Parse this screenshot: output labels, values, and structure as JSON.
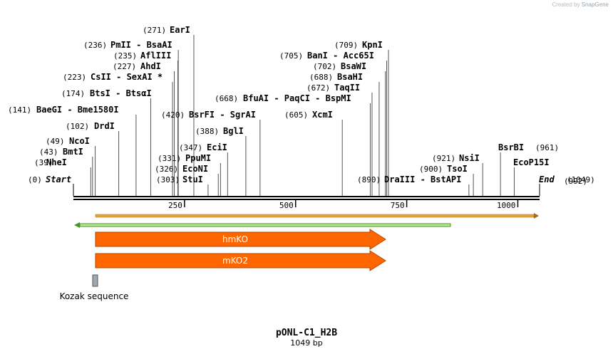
{
  "credit": {
    "prefix": "Created by",
    "brand": "SnapGene"
  },
  "title": "pONL-C1_H2B",
  "length_label": "1049 bp",
  "scale": {
    "min": 0,
    "max": 1049,
    "ticks": [
      250,
      500,
      750,
      1000
    ]
  },
  "colors": {
    "feature_fill": "#ff6600",
    "top_arrow": "#e8a33a",
    "bottom_arrow": "#3f9a1e",
    "backbone": "#000000"
  },
  "features": [
    {
      "name": "hmKO",
      "start": 49,
      "end": 709
    },
    {
      "name": "mKO2",
      "start": 49,
      "end": 709
    },
    {
      "name": "Kozak sequence",
      "start": 43,
      "end": 49
    }
  ],
  "ends": {
    "start_pos": "(0)",
    "start_label": "Start",
    "end_pos": "(1049)",
    "end_label": "End"
  },
  "sites": [
    {
      "pos": "(39)",
      "name": "NheI",
      "bp": 39
    },
    {
      "pos": "(43)",
      "name": "BmtI",
      "bp": 43
    },
    {
      "pos": "(49)",
      "name": "NcoI",
      "bp": 49
    },
    {
      "pos": "(102)",
      "name": "DrdI",
      "bp": 102
    },
    {
      "pos": "(141)",
      "name": "BaeGI  - Bme1580I",
      "bp": 141
    },
    {
      "pos": "(174)",
      "name": "BtsI  - BtsαI",
      "bp": 174
    },
    {
      "pos": "(223)",
      "name": "CsII  - SexAI *",
      "bp": 223
    },
    {
      "pos": "(227)",
      "name": "AhdI",
      "bp": 227
    },
    {
      "pos": "(235)",
      "name": "AflIII",
      "bp": 235
    },
    {
      "pos": "(236)",
      "name": "PmII  - BsaAI",
      "bp": 236
    },
    {
      "pos": "(271)",
      "name": "EarI",
      "bp": 271
    },
    {
      "pos": "(303)",
      "name": "StuI",
      "bp": 303
    },
    {
      "pos": "(326)",
      "name": "EcoNI",
      "bp": 326
    },
    {
      "pos": "(331)",
      "name": "PpuMI",
      "bp": 331
    },
    {
      "pos": "(347)",
      "name": "EciI",
      "bp": 347
    },
    {
      "pos": "(388)",
      "name": "BglI",
      "bp": 388
    },
    {
      "pos": "(420)",
      "name": "BsrFI  - SgrAI",
      "bp": 420
    },
    {
      "pos": "(605)",
      "name": "XcmI",
      "bp": 605
    },
    {
      "pos": "(668)",
      "name": "BfuAI  - PaqCI  - BspMI",
      "bp": 668
    },
    {
      "pos": "(672)",
      "name": "TaqII",
      "bp": 672
    },
    {
      "pos": "(688)",
      "name": "BsaHI",
      "bp": 688
    },
    {
      "pos": "(702)",
      "name": "BsaWI",
      "bp": 702
    },
    {
      "pos": "(705)",
      "name": "BanI  - Acc65I",
      "bp": 705
    },
    {
      "pos": "(709)",
      "name": "KpnI",
      "bp": 709
    },
    {
      "pos": "(890)",
      "name": "DraIII  - BstAPI",
      "bp": 890
    },
    {
      "pos": "(900)",
      "name": "TsoI",
      "bp": 900
    },
    {
      "pos": "(921)",
      "name": "NsiI",
      "bp": 921
    },
    {
      "pos": "",
      "name": "BsrBI",
      "bp": 961
    },
    {
      "pos": "(961)",
      "name": "",
      "bp": 961
    },
    {
      "pos": "",
      "name": "EcoP15I",
      "bp": 992
    },
    {
      "pos": "(992)",
      "name": "",
      "bp": 992
    }
  ]
}
